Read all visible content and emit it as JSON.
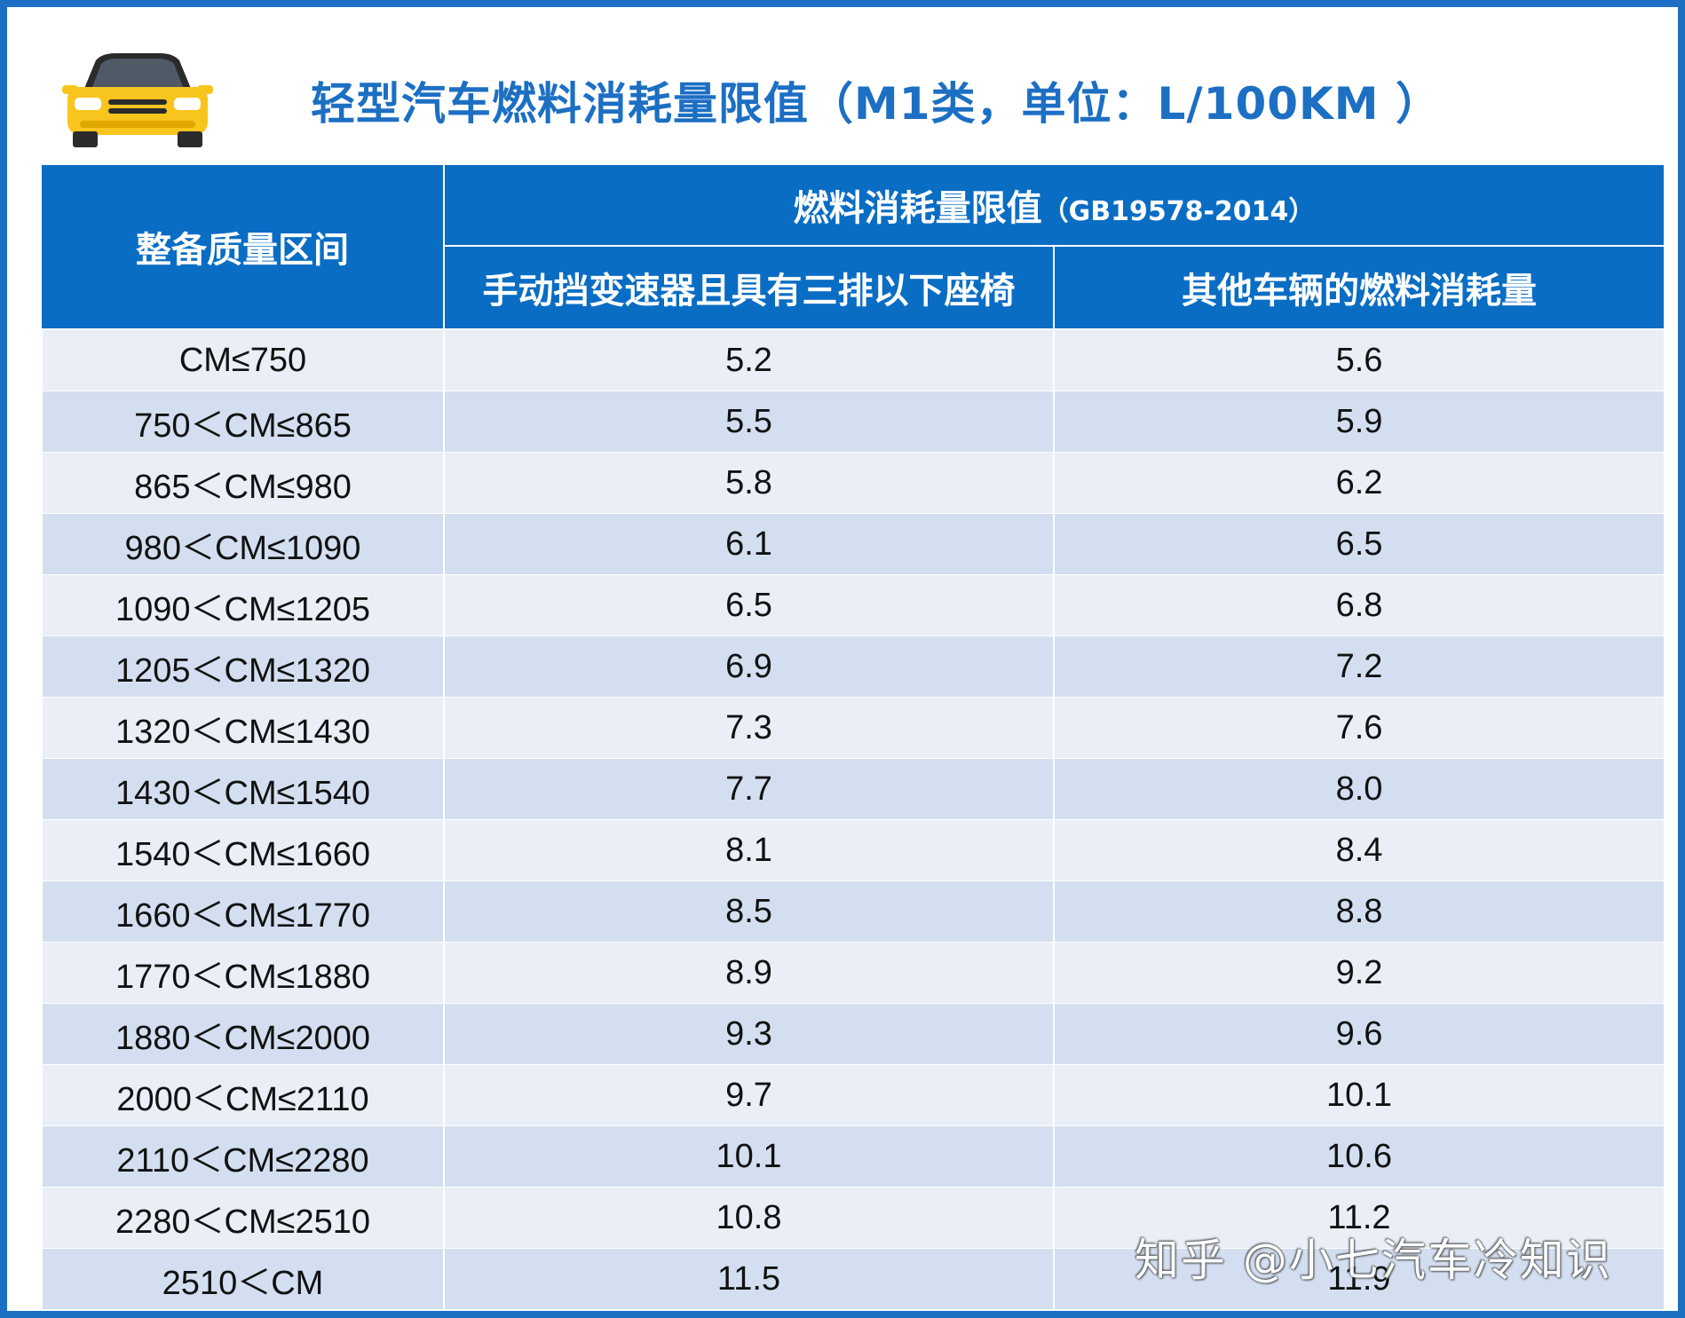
{
  "title": "轻型汽车燃料消耗量限值（M1类，单位：L/100KM ）",
  "table": {
    "header_mass": "整备质量区间",
    "header_group": "燃料消耗量限值",
    "header_group_std": "（GB19578-2014）",
    "header_col_manual": "手动挡变速器且具有三排以下座椅",
    "header_col_other": "其他车辆的燃料消耗量",
    "rows": [
      {
        "range": "CM≤750",
        "manual": "5.2",
        "other": "5.6"
      },
      {
        "range": "750＜CM≤865",
        "manual": "5.5",
        "other": "5.9"
      },
      {
        "range": "865＜CM≤980",
        "manual": "5.8",
        "other": "6.2"
      },
      {
        "range": "980＜CM≤1090",
        "manual": "6.1",
        "other": "6.5"
      },
      {
        "range": "1090＜CM≤1205",
        "manual": "6.5",
        "other": "6.8"
      },
      {
        "range": "1205＜CM≤1320",
        "manual": "6.9",
        "other": "7.2"
      },
      {
        "range": "1320＜CM≤1430",
        "manual": "7.3",
        "other": "7.6"
      },
      {
        "range": "1430＜CM≤1540",
        "manual": "7.7",
        "other": "8.0"
      },
      {
        "range": "1540＜CM≤1660",
        "manual": "8.1",
        "other": "8.4"
      },
      {
        "range": "1660＜CM≤1770",
        "manual": "8.5",
        "other": "8.8"
      },
      {
        "range": "1770＜CM≤1880",
        "manual": "8.9",
        "other": "9.2"
      },
      {
        "range": "1880＜CM≤2000",
        "manual": "9.3",
        "other": "9.6"
      },
      {
        "range": "2000＜CM≤2110",
        "manual": "9.7",
        "other": "10.1"
      },
      {
        "range": "2110＜CM≤2280",
        "manual": "10.1",
        "other": "10.6"
      },
      {
        "range": "2280＜CM≤2510",
        "manual": "10.8",
        "other": "11.2"
      },
      {
        "range": "2510＜CM",
        "manual": "11.5",
        "other": "11.9"
      }
    ]
  },
  "watermark": "知乎 @小七汽车冷知识",
  "icons": {
    "car": "car-icon"
  },
  "colors": {
    "accent": "#1c6fc3",
    "header_bg": "#0a6dc4",
    "row_light": "#e9eef7",
    "row_dark": "#d3dff0",
    "car_yellow": "#f7c51d"
  }
}
